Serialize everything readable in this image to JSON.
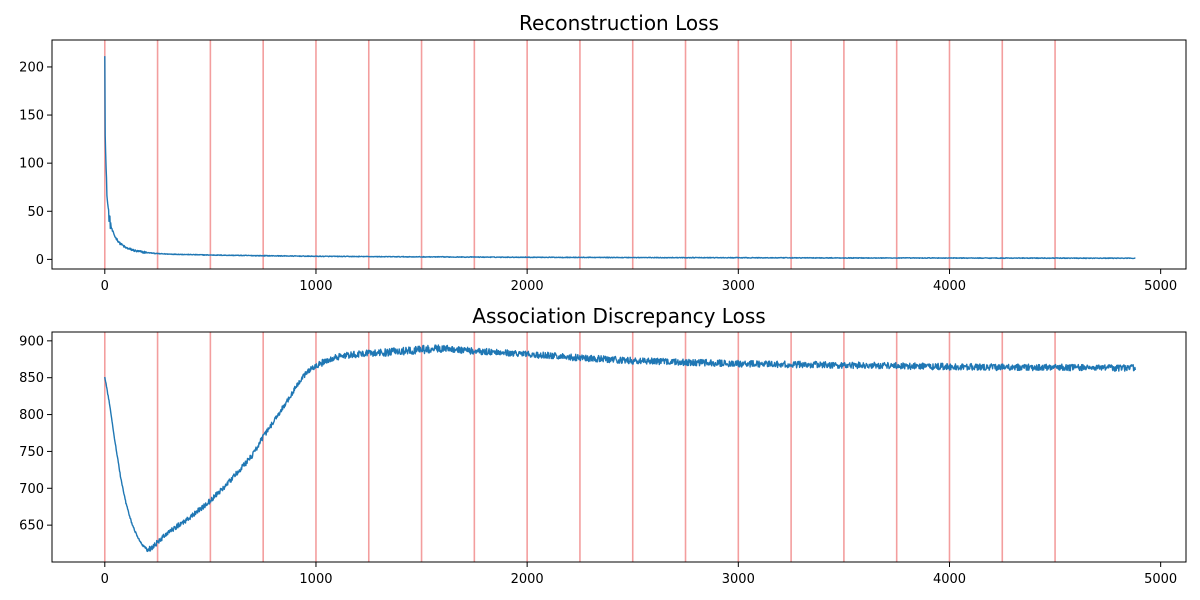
{
  "chart_data": [
    {
      "type": "line",
      "title": "Reconstruction Loss",
      "xlim": [
        -250,
        5120
      ],
      "ylim": [
        -10,
        228
      ],
      "xticks": [
        0,
        1000,
        2000,
        3000,
        4000,
        5000
      ],
      "yticks": [
        0,
        50,
        100,
        150,
        200
      ],
      "vlines": [
        0,
        250,
        500,
        750,
        1000,
        1250,
        1500,
        1750,
        2000,
        2250,
        2500,
        2750,
        3000,
        3250,
        3500,
        3750,
        4000,
        4250,
        4500
      ],
      "vline_color": "#f28e8e",
      "series": [
        {
          "color": "#1f77b4",
          "x": [
            0,
            2,
            5,
            8,
            12,
            18,
            25,
            35,
            50,
            70,
            100,
            150,
            200,
            250,
            300,
            400,
            500,
            750,
            1000,
            1500,
            2000,
            2500,
            3000,
            3500,
            4000,
            4500,
            4880
          ],
          "y": [
            217,
            135,
            100,
            80,
            62,
            48,
            38,
            30,
            23,
            17,
            12,
            8.5,
            7,
            6,
            5.5,
            5,
            4.5,
            3.8,
            3.2,
            2.6,
            2.2,
            1.9,
            1.7,
            1.5,
            1.4,
            1.3,
            1.2
          ]
        }
      ]
    },
    {
      "type": "line",
      "title": "Association Discrepancy Loss",
      "xlim": [
        -250,
        5120
      ],
      "ylim": [
        600,
        912
      ],
      "xticks": [
        0,
        1000,
        2000,
        3000,
        4000,
        5000
      ],
      "yticks": [
        650,
        700,
        750,
        800,
        850,
        900
      ],
      "vlines": [
        0,
        250,
        500,
        750,
        1000,
        1250,
        1500,
        1750,
        2000,
        2250,
        2500,
        2750,
        3000,
        3250,
        3500,
        3750,
        4000,
        4250,
        4500
      ],
      "vline_color": "#f28e8e",
      "series": [
        {
          "color": "#1f77b4",
          "x": [
            0,
            25,
            50,
            75,
            100,
            125,
            150,
            175,
            200,
            225,
            250,
            300,
            400,
            500,
            600,
            700,
            750,
            800,
            900,
            950,
            1000,
            1100,
            1200,
            1300,
            1400,
            1500,
            1600,
            1750,
            2000,
            2250,
            2500,
            2750,
            3000,
            3250,
            3500,
            3750,
            4000,
            4250,
            4500,
            4880
          ],
          "y": [
            852,
            810,
            760,
            715,
            680,
            655,
            637,
            624,
            617,
            619,
            627,
            640,
            660,
            683,
            712,
            745,
            770,
            790,
            835,
            855,
            867,
            878,
            882,
            884,
            886,
            888,
            890,
            886,
            882,
            877,
            873,
            871,
            869,
            868,
            867,
            866,
            865,
            864,
            864,
            863
          ]
        }
      ]
    }
  ]
}
